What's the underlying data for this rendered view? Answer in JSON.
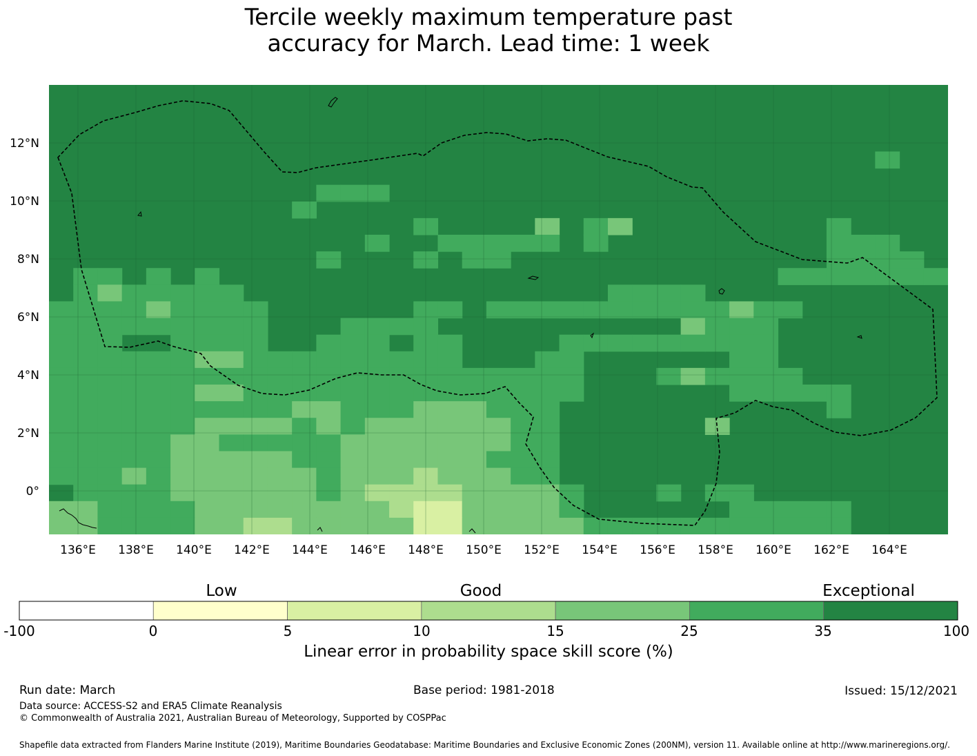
{
  "title": {
    "line1": "Tercile weekly maximum temperature past",
    "line2": "accuracy for March. Lead time: 1 week"
  },
  "map": {
    "lon_ticks": [
      "136°E",
      "138°E",
      "140°E",
      "142°E",
      "144°E",
      "146°E",
      "148°E",
      "150°E",
      "152°E",
      "154°E",
      "156°E",
      "158°E",
      "160°E",
      "162°E",
      "164°E"
    ],
    "lat_ticks": [
      "12°N",
      "10°N",
      "8°N",
      "6°N",
      "4°N",
      "2°N",
      "0°"
    ],
    "boundary_style": "dashed black line (EEZ)",
    "gridlines": true
  },
  "colorbar": {
    "categories": [
      "Low",
      "Good",
      "Exceptional"
    ],
    "ticks": [
      "-100",
      "0",
      "5",
      "10",
      "15",
      "25",
      "35",
      "100"
    ],
    "colors": [
      "#ffffff",
      "#ffffcc",
      "#d9f0a3",
      "#addd8e",
      "#78c679",
      "#41ab5d",
      "#238443"
    ],
    "label": "Linear error in probability space skill score (%)"
  },
  "footer": {
    "run_date": "Run date: March",
    "base_period": "Base period: 1981-2018",
    "issued": "Issued: 15/12/2021",
    "data_source": "Data source: ACCESS-S2 and ERA5 Climate Reanalysis",
    "copyright": "© Commonwealth of Australia 2021, Australian Bureau of Meteorology, Supported by COSPPac",
    "shapefile": "Shapefile data extracted from Flanders Marine Institute (2019), Maritime Boundaries Geodatabase: Maritime Boundaries and Exclusive Economic Zones (200NM), version 11. Available online at http://www.marineregions.org/."
  }
}
